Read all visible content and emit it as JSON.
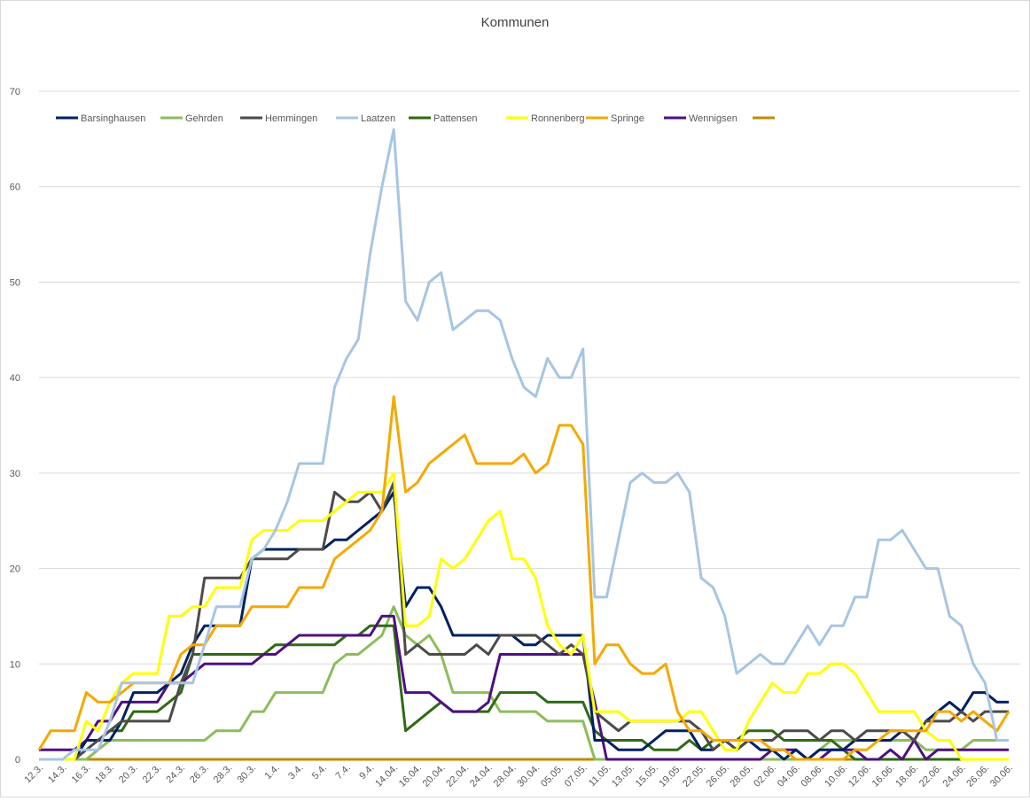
{
  "chart_data": {
    "type": "line",
    "title": "Kommunen",
    "xlabel": "",
    "ylabel": "",
    "ylim": [
      0,
      70
    ],
    "yticks": [
      0,
      10,
      20,
      30,
      40,
      50,
      60,
      70
    ],
    "grid": true,
    "legend_position": "top-left",
    "x_tick_labels": [
      "12.3.",
      "14.3.",
      "16.3.",
      "18.3.",
      "20.3.",
      "22.3.",
      "24.3.",
      "26.3.",
      "28.3.",
      "30.3.",
      "1.4.",
      "3.4.",
      "5.4.",
      "7.4.",
      "9.4.",
      "14.04.",
      "16.04.",
      "20.04.",
      "22.04.",
      "24.04.",
      "28.04.",
      "30.04.",
      "05.05.",
      "07.05.",
      "11.05.",
      "13.05.",
      "15.05.",
      "19.05.",
      "22.05.",
      "26.05.",
      "28.05.",
      "02.06.",
      "04.06.",
      "08.06.",
      "10.06.",
      "12.06.",
      "16.06.",
      "18.06.",
      "22.06.",
      "24.06.",
      "26.06.",
      "30.06."
    ],
    "points_per_label": 2,
    "series": [
      {
        "name": "Barsinghausen",
        "color": "#002060",
        "values": [
          0,
          0,
          0,
          0,
          2,
          2,
          2,
          4,
          7,
          7,
          7,
          8,
          9,
          12,
          14,
          14,
          14,
          14,
          21,
          22,
          22,
          22,
          22,
          22,
          22,
          23,
          23,
          24,
          25,
          26,
          28,
          16,
          18,
          18,
          16,
          13,
          13,
          13,
          13,
          13,
          13,
          12,
          12,
          13,
          13,
          13,
          13,
          2,
          2,
          1,
          1,
          1,
          2,
          3,
          3,
          3,
          1,
          1,
          2,
          1,
          2,
          1,
          1,
          0,
          1,
          0,
          1,
          1,
          1,
          2,
          2,
          2,
          2,
          3,
          2,
          4,
          5,
          6,
          5,
          7,
          7,
          6,
          6
        ]
      },
      {
        "name": "Gehrden",
        "color": "#8cbd5c",
        "values": [
          0,
          0,
          0,
          0,
          0,
          1,
          2,
          2,
          2,
          2,
          2,
          2,
          2,
          2,
          2,
          3,
          3,
          3,
          5,
          5,
          7,
          7,
          7,
          7,
          7,
          10,
          11,
          11,
          12,
          13,
          16,
          13,
          12,
          13,
          11,
          7,
          7,
          7,
          7,
          5,
          5,
          5,
          5,
          4,
          4,
          4,
          4,
          0,
          0,
          0,
          0,
          0,
          0,
          0,
          0,
          0,
          0,
          0,
          0,
          0,
          0,
          0,
          0,
          0,
          0,
          0,
          1,
          2,
          2,
          2,
          2,
          2,
          2,
          2,
          2,
          1,
          1,
          1,
          1,
          2,
          2,
          2,
          2
        ]
      },
      {
        "name": "Hemmingen",
        "color": "#4d4a4a",
        "values": [
          0,
          0,
          0,
          0,
          1,
          2,
          3,
          4,
          4,
          4,
          4,
          4,
          8,
          11,
          19,
          19,
          19,
          19,
          21,
          21,
          21,
          21,
          22,
          22,
          22,
          28,
          27,
          27,
          28,
          26,
          29,
          11,
          12,
          11,
          11,
          11,
          11,
          12,
          11,
          13,
          13,
          13,
          13,
          12,
          11,
          12,
          11,
          5,
          4,
          3,
          4,
          4,
          4,
          4,
          4,
          4,
          3,
          1,
          2,
          1,
          2,
          2,
          2,
          3,
          3,
          3,
          2,
          3,
          3,
          2,
          3,
          3,
          3,
          3,
          2,
          4,
          4,
          4,
          5,
          4,
          5,
          5,
          5
        ]
      },
      {
        "name": "Laatzen",
        "color": "#a7c5e3",
        "values": [
          0,
          0,
          0,
          1,
          1,
          1,
          4,
          8,
          8,
          8,
          8,
          8,
          8,
          8,
          12,
          16,
          16,
          16,
          21,
          22,
          24,
          27,
          31,
          31,
          31,
          39,
          42,
          44,
          53,
          60,
          66,
          48,
          46,
          50,
          51,
          45,
          46,
          47,
          47,
          46,
          42,
          39,
          38,
          42,
          40,
          40,
          43,
          17,
          17,
          23,
          29,
          30,
          29,
          29,
          30,
          28,
          19,
          18,
          15,
          9,
          10,
          11,
          10,
          10,
          12,
          14,
          12,
          14,
          14,
          17,
          17,
          23,
          23,
          24,
          22,
          20,
          20,
          15,
          14,
          10,
          8,
          2,
          2
        ]
      },
      {
        "name": "Pattensen",
        "color": "#2f6a14",
        "values": [
          0,
          0,
          0,
          0,
          2,
          2,
          3,
          3,
          5,
          5,
          5,
          6,
          7,
          11,
          11,
          11,
          11,
          11,
          11,
          11,
          12,
          12,
          12,
          12,
          12,
          12,
          13,
          13,
          14,
          14,
          14,
          3,
          4,
          5,
          6,
          5,
          5,
          5,
          5,
          7,
          7,
          7,
          7,
          6,
          6,
          6,
          6,
          3,
          2,
          2,
          2,
          2,
          1,
          1,
          1,
          2,
          1,
          2,
          2,
          2,
          3,
          3,
          3,
          2,
          2,
          2,
          2,
          2,
          1,
          0,
          0,
          0,
          0,
          0,
          0,
          0,
          0,
          0,
          0,
          0,
          0,
          0,
          0
        ]
      },
      {
        "name": "Ronnenberg",
        "color": "#ffff00",
        "values": [
          0,
          0,
          0,
          0,
          4,
          3,
          6,
          8,
          9,
          9,
          9,
          15,
          15,
          16,
          16,
          18,
          18,
          18,
          23,
          24,
          24,
          24,
          25,
          25,
          25,
          26,
          27,
          28,
          28,
          28,
          30,
          14,
          14,
          15,
          21,
          20,
          21,
          23,
          25,
          26,
          21,
          21,
          19,
          14,
          12,
          11,
          13,
          5,
          5,
          5,
          4,
          4,
          4,
          4,
          4,
          5,
          5,
          3,
          1,
          1,
          4,
          6,
          8,
          7,
          7,
          9,
          9,
          10,
          10,
          9,
          7,
          5,
          5,
          5,
          5,
          3,
          2,
          2,
          0,
          0,
          0,
          0,
          0
        ]
      },
      {
        "name": "Springe",
        "color": "#f5a800",
        "values": [
          1,
          3,
          3,
          3,
          7,
          6,
          6,
          7,
          8,
          8,
          8,
          8,
          11,
          12,
          12,
          14,
          14,
          14,
          16,
          16,
          16,
          16,
          18,
          18,
          18,
          21,
          22,
          23,
          24,
          26,
          38,
          28,
          29,
          31,
          32,
          33,
          34,
          31,
          31,
          31,
          31,
          32,
          30,
          31,
          35,
          35,
          33,
          10,
          12,
          12,
          10,
          9,
          9,
          10,
          5,
          3,
          3,
          2,
          2,
          2,
          2,
          2,
          1,
          1,
          0,
          0,
          0,
          0,
          0,
          1,
          1,
          2,
          3,
          3,
          3,
          3,
          5,
          5,
          4,
          5,
          4,
          3,
          5
        ]
      },
      {
        "name": "Wennigsen",
        "color": "#4f0f82",
        "values": [
          1,
          1,
          1,
          1,
          2,
          4,
          4,
          6,
          6,
          6,
          6,
          8,
          8,
          9,
          10,
          10,
          10,
          10,
          10,
          11,
          11,
          12,
          13,
          13,
          13,
          13,
          13,
          13,
          13,
          15,
          15,
          7,
          7,
          7,
          6,
          5,
          5,
          5,
          6,
          11,
          11,
          11,
          11,
          11,
          11,
          11,
          11,
          6,
          0,
          0,
          0,
          0,
          0,
          0,
          0,
          0,
          0,
          0,
          0,
          0,
          0,
          0,
          1,
          1,
          1,
          0,
          0,
          1,
          1,
          1,
          0,
          0,
          1,
          0,
          2,
          0,
          1,
          1,
          1,
          1,
          1,
          1,
          1
        ]
      },
      {
        "name": "",
        "color": "#bf8a00",
        "values": [
          0,
          0,
          0,
          0,
          0,
          0,
          0,
          0,
          0,
          0,
          0,
          0,
          0,
          0,
          0,
          0,
          0,
          0,
          0,
          0,
          0,
          0,
          0,
          0,
          0,
          0,
          0,
          0,
          0,
          0,
          0,
          0,
          0,
          0,
          0,
          0,
          0,
          0,
          0,
          0,
          0,
          0,
          0,
          0,
          0,
          0,
          0,
          0,
          0,
          0,
          0,
          0,
          0,
          0,
          0,
          0,
          0,
          0,
          0,
          0,
          0,
          0,
          0,
          0,
          0,
          0,
          0,
          0,
          0,
          0,
          0,
          0,
          0,
          0,
          0,
          0,
          0,
          0,
          0,
          0,
          0,
          0,
          0
        ]
      }
    ]
  }
}
